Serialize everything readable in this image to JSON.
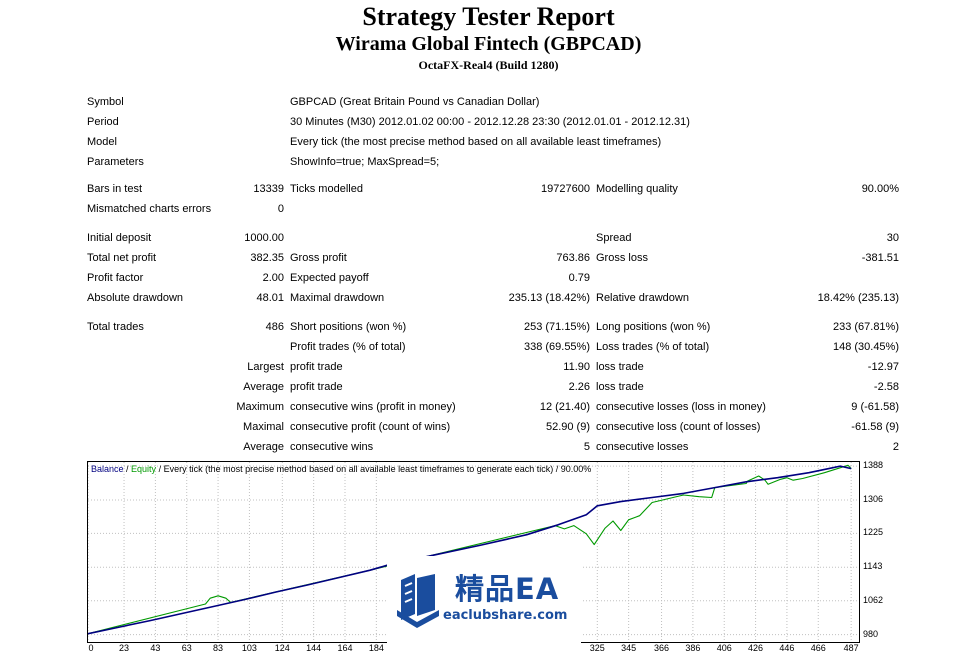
{
  "header": {
    "title": "Strategy Tester Report",
    "subtitle": "Wirama Global Fintech (GBPCAD)",
    "account": "OctaFX-Real4 (Build 1280)"
  },
  "info": {
    "symbol_label": "Symbol",
    "symbol_value": "GBPCAD (Great Britain Pound vs Canadian Dollar)",
    "period_label": "Period",
    "period_value": "30 Minutes (M30) 2012.01.02 00:00 - 2012.12.28 23:30 (2012.01.01 - 2012.12.31)",
    "model_label": "Model",
    "model_value": "Every tick (the most precise method based on all available least timeframes)",
    "parameters_label": "Parameters",
    "parameters_value": "ShowInfo=true; MaxSpread=5;"
  },
  "stats": {
    "bars_label": "Bars in test",
    "bars_value": "13339",
    "ticks_label": "Ticks modelled",
    "ticks_value": "19727600",
    "quality_label": "Modelling quality",
    "quality_value": "90.00%",
    "mismatch_label": "Mismatched charts errors",
    "mismatch_value": "0",
    "deposit_label": "Initial deposit",
    "deposit_value": "1000.00",
    "spread_label": "Spread",
    "spread_value": "30",
    "net_label": "Total net profit",
    "net_value": "382.35",
    "gross_profit_label": "Gross profit",
    "gross_profit_value": "763.86",
    "gross_loss_label": "Gross loss",
    "gross_loss_value": "-381.51",
    "pf_label": "Profit factor",
    "pf_value": "2.00",
    "ep_label": "Expected payoff",
    "ep_value": "0.79",
    "abs_dd_label": "Absolute drawdown",
    "abs_dd_value": "48.01",
    "max_dd_label": "Maximal drawdown",
    "max_dd_value": "235.13 (18.42%)",
    "rel_dd_label": "Relative drawdown",
    "rel_dd_value": "18.42% (235.13)"
  },
  "trades": {
    "total_label": "Total trades",
    "total_value": "486",
    "short_label": "Short positions (won %)",
    "short_value": "253 (71.15%)",
    "long_label": "Long positions (won %)",
    "long_value": "233 (67.81%)",
    "pt_label": "Profit trades (% of total)",
    "pt_value": "338 (69.55%)",
    "lt_label": "Loss trades (% of total)",
    "lt_value": "148 (30.45%)",
    "largest_label": "Largest",
    "lg_profit_label": "profit trade",
    "lg_profit_value": "11.90",
    "lg_loss_label": "loss trade",
    "lg_loss_value": "-12.97",
    "average_label": "Average",
    "av_profit_label": "profit trade",
    "av_profit_value": "2.26",
    "av_loss_label": "loss trade",
    "av_loss_value": "-2.58",
    "maximum_label": "Maximum",
    "mx_wins_label": "consecutive wins (profit in money)",
    "mx_wins_value": "12 (21.40)",
    "mx_losses_label": "consecutive losses (loss in money)",
    "mx_losses_value": "9 (-61.58)",
    "maximal_label": "Maximal",
    "ml_profit_label": "consecutive profit (count of wins)",
    "ml_profit_value": "52.90 (9)",
    "ml_loss_label": "consecutive loss (count of losses)",
    "ml_loss_value": "-61.58 (9)",
    "average2_label": "Average",
    "ac_wins_label": "consecutive wins",
    "ac_wins_value": "5",
    "ac_losses_label": "consecutive losses",
    "ac_losses_value": "2"
  },
  "legend": {
    "balance": "Balance",
    "sep1": " / ",
    "equity": "Equity",
    "rest": " / Every tick (the most precise method based on all available least timeframes to generate each tick) / 90.00%"
  },
  "watermark": {
    "brand_cn": "精品EA",
    "url": "eaclubshare.com"
  },
  "colors": {
    "balance": "#000080",
    "equity": "#009900",
    "brand": "#1a4d9e"
  },
  "chart_data": {
    "type": "line",
    "title": "Balance / Equity / Every tick (the most precise method based on all available least timeframes to generate each tick) / 90.00%",
    "xlabel": "",
    "ylabel": "",
    "x_ticks": [
      0,
      23,
      43,
      63,
      83,
      103,
      124,
      144,
      164,
      184,
      325,
      345,
      366,
      386,
      406,
      426,
      446,
      466,
      487
    ],
    "y_ticks": [
      980,
      1062,
      1143,
      1225,
      1306,
      1388
    ],
    "xlim": [
      0,
      492
    ],
    "ylim": [
      962,
      1398
    ],
    "series": [
      {
        "name": "Balance",
        "x": [
          0,
          20,
          40,
          60,
          80,
          100,
          120,
          140,
          160,
          180,
          191,
          220,
          250,
          280,
          300,
          318,
          325,
          340,
          360,
          380,
          400,
          420,
          440,
          460,
          475,
          480,
          487
        ],
        "y": [
          982,
          998,
          1014,
          1031,
          1048,
          1065,
          1083,
          1100,
          1118,
          1136,
          1148,
          1172,
          1196,
          1222,
          1246,
          1270,
          1292,
          1302,
          1312,
          1322,
          1336,
          1350,
          1360,
          1372,
          1384,
          1388,
          1382
        ]
      },
      {
        "name": "Equity",
        "x": [
          0,
          75,
          78,
          83,
          88,
          91,
          180,
          298,
          304,
          310,
          318,
          323,
          330,
          335,
          340,
          345,
          352,
          360,
          380,
          390,
          398,
          400,
          420,
          421,
          428,
          432,
          434,
          442,
          446,
          450,
          456,
          470,
          485,
          487
        ],
        "y": [
          982,
          1054,
          1068,
          1074,
          1068,
          1058,
          1136,
          1244,
          1236,
          1244,
          1224,
          1198,
          1238,
          1255,
          1232,
          1258,
          1268,
          1300,
          1318,
          1314,
          1312,
          1336,
          1346,
          1352,
          1364,
          1354,
          1344,
          1356,
          1360,
          1354,
          1358,
          1372,
          1390,
          1382
        ]
      }
    ]
  }
}
